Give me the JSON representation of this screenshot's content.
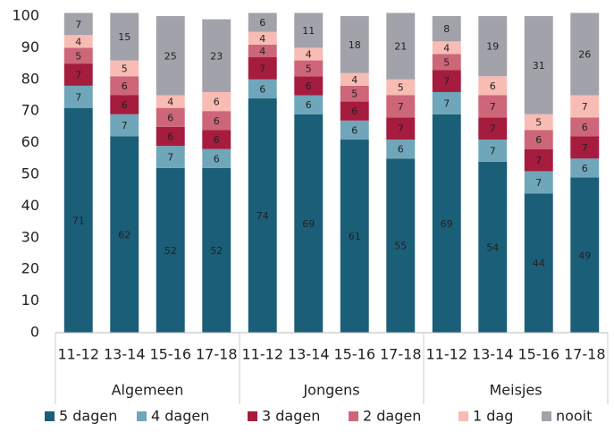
{
  "chart_data": {
    "type": "stacked_bar",
    "categories": [
      "11-12",
      "13-14",
      "15-16",
      "17-18",
      "11-12",
      "13-14",
      "15-16",
      "17-18",
      "11-12",
      "13-14",
      "15-16",
      "17-18"
    ],
    "groups": [
      "Algemeen",
      "Jongens",
      "Meisjes"
    ],
    "series": [
      {
        "name": "5 dagen",
        "color": "#1b5e78",
        "label_color": "#ffffff",
        "values": [
          71,
          62,
          52,
          52,
          74,
          69,
          61,
          55,
          69,
          54,
          44,
          49
        ]
      },
      {
        "name": "4 dagen",
        "color": "#6fa6ba",
        "label_color": "#ffffff",
        "values": [
          7,
          7,
          7,
          6,
          6,
          6,
          6,
          6,
          7,
          7,
          7,
          6
        ]
      },
      {
        "name": "3 dagen",
        "color": "#a51c3f",
        "label_color": "#ffffff",
        "values": [
          7,
          6,
          6,
          6,
          7,
          6,
          6,
          7,
          7,
          7,
          7,
          7
        ]
      },
      {
        "name": "2 dagen",
        "color": "#cd6678",
        "label_color": "#ffffff",
        "values": [
          5,
          6,
          6,
          6,
          4,
          5,
          5,
          7,
          5,
          7,
          6,
          6
        ]
      },
      {
        "name": "1 dag",
        "color": "#f8bcb4",
        "label_color": "#ffffff",
        "values": [
          4,
          5,
          4,
          6,
          4,
          4,
          4,
          5,
          4,
          6,
          5,
          7
        ]
      },
      {
        "name": "nooit",
        "color": "#a2a2aa",
        "label_color": "#ffffff",
        "values": [
          7,
          15,
          25,
          23,
          6,
          11,
          18,
          21,
          8,
          19,
          31,
          26
        ]
      }
    ],
    "ylim": [
      0,
      100
    ],
    "yticks": [
      0,
      10,
      20,
      30,
      40,
      50,
      60,
      70,
      80,
      90,
      100
    ],
    "grid": false,
    "legend": "bottom"
  }
}
